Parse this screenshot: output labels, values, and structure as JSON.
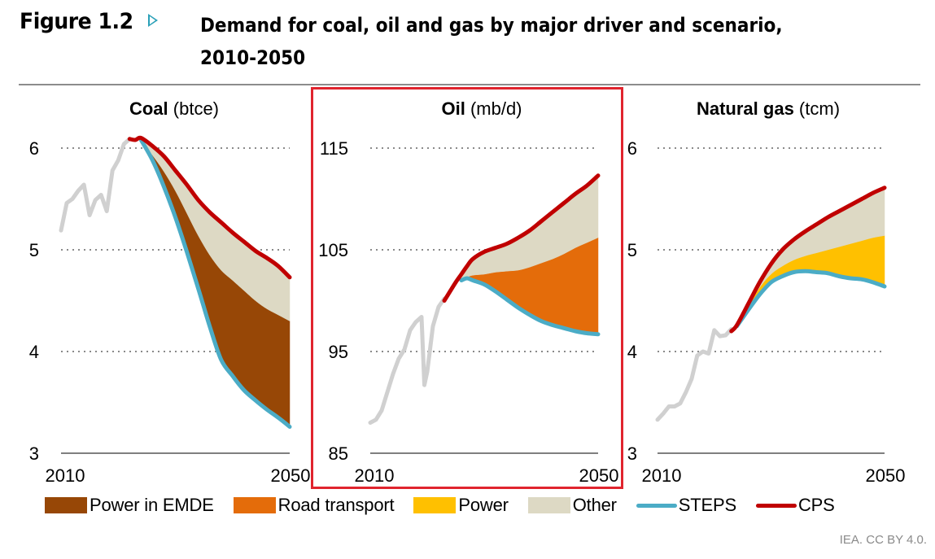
{
  "figure": {
    "label": "Figure 1.2",
    "arrow_icon": "triangle-right-icon",
    "title_line1": "Demand for coal, oil and gas by major driver and scenario,",
    "title_line2": "2010-2050",
    "credit": "IEA. CC BY 4.0."
  },
  "colors": {
    "power_emde": "#974706",
    "road_transport": "#e46c0a",
    "power": "#ffc000",
    "other": "#ddd9c4",
    "steps": "#4bacc6",
    "cps": "#c00000",
    "historical": "#d0d0d0",
    "highlight": "#e0242e",
    "accent_arrow": "#2aa0b8"
  },
  "legend": [
    {
      "label": "Power in EMDE",
      "type": "area",
      "color_key": "power_emde"
    },
    {
      "label": "Road transport",
      "type": "area",
      "color_key": "road_transport"
    },
    {
      "label": "Power",
      "type": "area",
      "color_key": "power"
    },
    {
      "label": "Other",
      "type": "area",
      "color_key": "other"
    },
    {
      "label": "STEPS",
      "type": "line",
      "color_key": "steps"
    },
    {
      "label": "CPS",
      "type": "line",
      "color_key": "cps"
    }
  ],
  "chart_data": [
    {
      "type": "area",
      "title_bold": "Coal",
      "title_unit": "(btce)",
      "xlabel": "",
      "ylabel": "",
      "xlim": [
        2010,
        2050
      ],
      "ylim": [
        3,
        6
      ],
      "yticks": [
        3,
        4,
        5,
        6
      ],
      "ytick_labels": [
        "3",
        "4",
        "5",
        "6"
      ],
      "xtick_labels": [
        "2010",
        "2050"
      ],
      "grid": true,
      "highlighted": false,
      "historical": {
        "x": [
          2010,
          2011,
          2012,
          2013,
          2014,
          2015,
          2016,
          2017,
          2018,
          2019,
          2020,
          2021,
          2022
        ],
        "y": [
          5.19,
          5.46,
          5.5,
          5.58,
          5.64,
          5.34,
          5.49,
          5.54,
          5.38,
          5.78,
          5.88,
          6.04,
          6.09
        ]
      },
      "x": [
        2024,
        2026,
        2028,
        2030,
        2032,
        2034,
        2036,
        2038,
        2040,
        2042,
        2044,
        2046,
        2048,
        2050
      ],
      "steps": [
        6.08,
        5.88,
        5.62,
        5.32,
        4.98,
        4.62,
        4.25,
        3.92,
        3.76,
        3.62,
        3.52,
        3.43,
        3.35,
        3.26
      ],
      "stack_order": [
        "power_emde",
        "other"
      ],
      "stack_tops": {
        "power_emde": [
          6.08,
          5.93,
          5.77,
          5.58,
          5.36,
          5.14,
          4.95,
          4.8,
          4.7,
          4.6,
          4.5,
          4.42,
          4.36,
          4.3
        ],
        "other": [
          6.1,
          6.02,
          5.92,
          5.78,
          5.64,
          5.49,
          5.37,
          5.27,
          5.17,
          5.08,
          4.99,
          4.92,
          4.84,
          4.73
        ]
      },
      "cps": {
        "x": [
          2022,
          2023,
          2024,
          2026,
          2028,
          2030,
          2032,
          2034,
          2036,
          2038,
          2040,
          2042,
          2044,
          2046,
          2048,
          2050
        ],
        "y": [
          6.09,
          6.08,
          6.1,
          6.02,
          5.92,
          5.78,
          5.64,
          5.49,
          5.37,
          5.27,
          5.17,
          5.08,
          4.99,
          4.92,
          4.84,
          4.73
        ]
      }
    },
    {
      "type": "area",
      "title_bold": "Oil",
      "title_unit": "(mb/d)",
      "xlabel": "",
      "ylabel": "",
      "xlim": [
        2010,
        2050
      ],
      "ylim": [
        85,
        115
      ],
      "yticks": [
        85,
        95,
        105,
        115
      ],
      "ytick_labels": [
        "85",
        "95",
        "105",
        "115"
      ],
      "xtick_labels": [
        "2010",
        "2050"
      ],
      "grid": true,
      "highlighted": true,
      "historical": {
        "x": [
          2010,
          2011,
          2012,
          2013,
          2014,
          2015,
          2016,
          2017,
          2018,
          2019,
          2019.5,
          2020,
          2021,
          2022,
          2023
        ],
        "y": [
          88.0,
          88.3,
          89.2,
          91.0,
          92.8,
          94.3,
          95.2,
          97.1,
          97.9,
          98.4,
          91.7,
          93.0,
          97.5,
          99.4,
          100.2
        ]
      },
      "x": [
        2026,
        2027,
        2028,
        2030,
        2032,
        2034,
        2036,
        2038,
        2040,
        2042,
        2044,
        2046,
        2048,
        2050
      ],
      "steps": [
        102.0,
        102.2,
        102.0,
        101.6,
        100.9,
        100.1,
        99.3,
        98.6,
        98.0,
        97.6,
        97.3,
        97.0,
        96.8,
        96.7
      ],
      "stack_order": [
        "road_transport",
        "other"
      ],
      "stack_tops": {
        "road_transport": [
          102.0,
          102.3,
          102.5,
          102.6,
          102.8,
          102.9,
          103.0,
          103.3,
          103.7,
          104.1,
          104.6,
          105.2,
          105.7,
          106.2
        ],
        "other": [
          102.6,
          103.4,
          104.1,
          104.8,
          105.2,
          105.6,
          106.2,
          106.9,
          107.8,
          108.7,
          109.6,
          110.5,
          111.3,
          112.3
        ]
      },
      "cps": {
        "x": [
          2023,
          2024,
          2025,
          2026,
          2027,
          2028,
          2030,
          2032,
          2034,
          2036,
          2038,
          2040,
          2042,
          2044,
          2046,
          2048,
          2050
        ],
        "y": [
          100.0,
          100.9,
          101.8,
          102.6,
          103.4,
          104.1,
          104.8,
          105.2,
          105.6,
          106.2,
          106.9,
          107.8,
          108.7,
          109.6,
          110.5,
          111.3,
          112.3
        ]
      }
    },
    {
      "type": "area",
      "title_bold": "Natural gas",
      "title_unit": "(tcm)",
      "xlabel": "",
      "ylabel": "",
      "xlim": [
        2010,
        2050
      ],
      "ylim": [
        3,
        6
      ],
      "yticks": [
        3,
        4,
        5,
        6
      ],
      "ytick_labels": [
        "3",
        "4",
        "5",
        "6"
      ],
      "xtick_labels": [
        "2010",
        "2050"
      ],
      "grid": true,
      "highlighted": false,
      "historical": {
        "x": [
          2010,
          2011,
          2012,
          2013,
          2014,
          2015,
          2016,
          2017,
          2018,
          2019,
          2020,
          2021,
          2022,
          2023
        ],
        "y": [
          3.33,
          3.39,
          3.46,
          3.46,
          3.49,
          3.6,
          3.73,
          3.96,
          4.0,
          3.98,
          4.21,
          4.15,
          4.16,
          4.22
        ]
      },
      "x": [
        2024,
        2026,
        2028,
        2030,
        2032,
        2034,
        2036,
        2038,
        2040,
        2042,
        2044,
        2046,
        2048,
        2050
      ],
      "steps": [
        4.25,
        4.41,
        4.56,
        4.68,
        4.74,
        4.78,
        4.79,
        4.78,
        4.77,
        4.74,
        4.72,
        4.71,
        4.68,
        4.64
      ],
      "stack_order": [
        "power",
        "other"
      ],
      "stack_tops": {
        "power": [
          4.26,
          4.44,
          4.63,
          4.76,
          4.84,
          4.9,
          4.94,
          4.97,
          5.0,
          5.03,
          5.06,
          5.09,
          5.12,
          5.14
        ],
        "other": [
          4.26,
          4.47,
          4.68,
          4.86,
          5.0,
          5.1,
          5.18,
          5.25,
          5.32,
          5.38,
          5.44,
          5.5,
          5.56,
          5.61
        ]
      },
      "cps": {
        "x": [
          2023,
          2024,
          2026,
          2028,
          2030,
          2032,
          2034,
          2036,
          2038,
          2040,
          2042,
          2044,
          2046,
          2048,
          2050
        ],
        "y": [
          4.2,
          4.26,
          4.47,
          4.68,
          4.86,
          5.0,
          5.1,
          5.18,
          5.25,
          5.32,
          5.38,
          5.44,
          5.5,
          5.56,
          5.61
        ]
      }
    }
  ]
}
